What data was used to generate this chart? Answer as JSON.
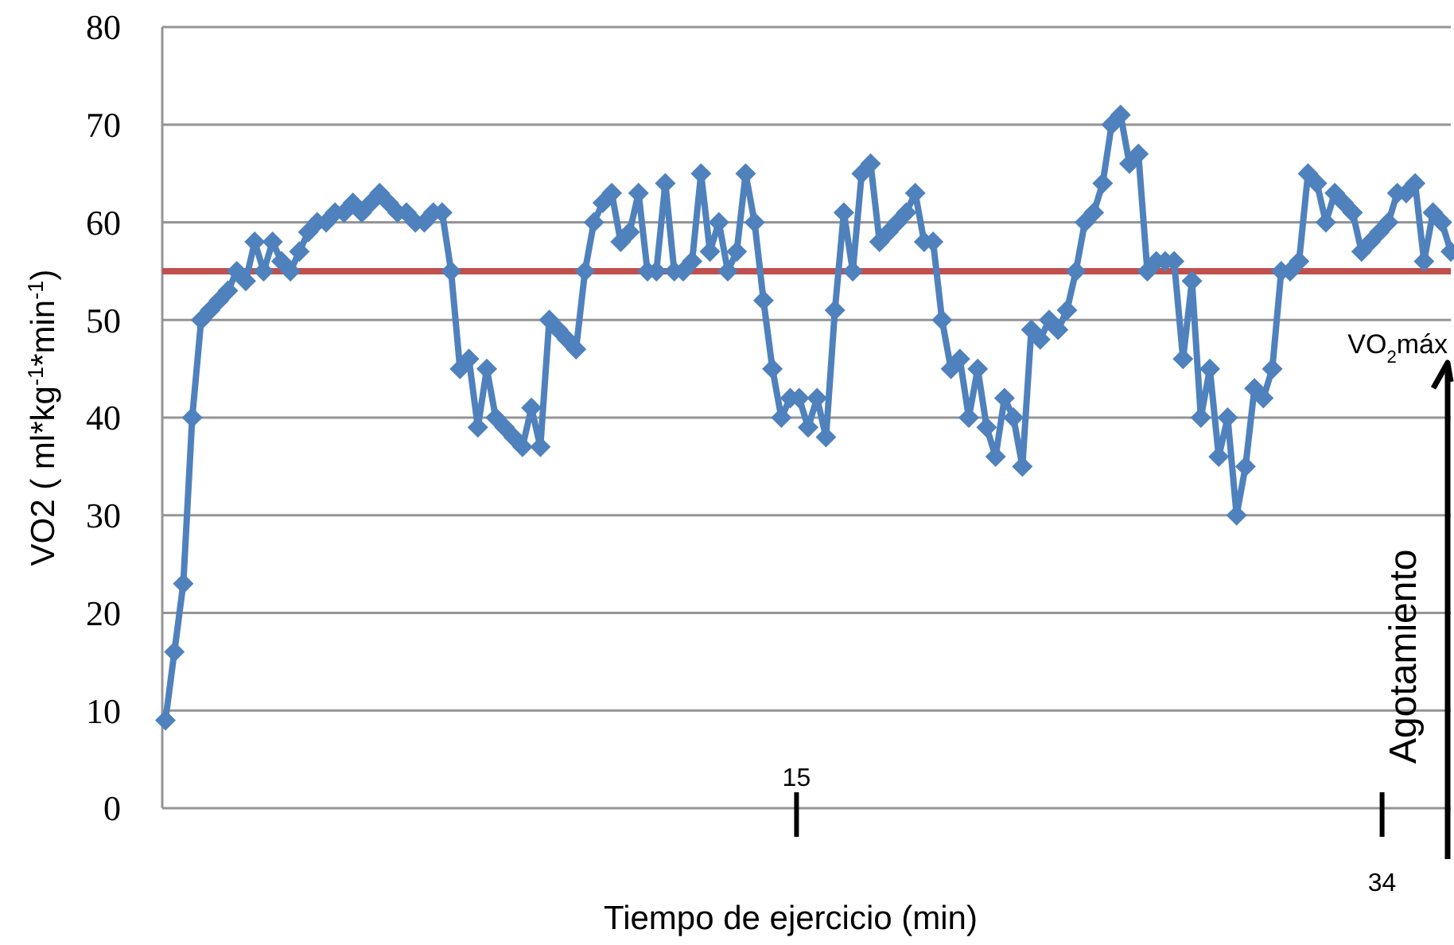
{
  "chart_data": {
    "type": "line",
    "xlabel": "Tiempo de ejercicio (min)",
    "ylabel": "VO2 ( ml*kg$^{-1}$*min$^{-1}$)",
    "categories": [
      null,
      null,
      null,
      null,
      null,
      null,
      null,
      null,
      null,
      null,
      null,
      null,
      null,
      null,
      null,
      null,
      null,
      null,
      null,
      null,
      null,
      null,
      null,
      null,
      null,
      null,
      null,
      null,
      null,
      null,
      null,
      null,
      null,
      null,
      null,
      null,
      null,
      null,
      null,
      null,
      null,
      null,
      null,
      null,
      null,
      null,
      null,
      null,
      null,
      null,
      null,
      null,
      null,
      null,
      null,
      null,
      null,
      null,
      null,
      null,
      null,
      null,
      null,
      null,
      null,
      null,
      null,
      null,
      null,
      null,
      null,
      null,
      null,
      null,
      null,
      null,
      null,
      null,
      null,
      null,
      null,
      null,
      null,
      null,
      null,
      null,
      null,
      null,
      null,
      null,
      null,
      null,
      null,
      null,
      null,
      null,
      null,
      null,
      null,
      null,
      null,
      null,
      null,
      null,
      null,
      null,
      null,
      null,
      null,
      null,
      null,
      null,
      null,
      null,
      null,
      null,
      null,
      null,
      null,
      null,
      null,
      null,
      null,
      null,
      null,
      null,
      null,
      null,
      null,
      null,
      null,
      null,
      null,
      null,
      null,
      null,
      null,
      null,
      null,
      null,
      null,
      null,
      null,
      null,
      null
    ],
    "series": [
      {
        "color": "#4f81bd",
        "values": [
          9,
          16,
          23,
          40,
          50,
          51,
          52,
          53,
          55,
          54,
          58,
          55,
          58,
          56,
          55,
          57,
          59,
          60,
          60,
          61,
          61,
          62,
          61,
          62,
          63,
          62,
          61,
          61,
          60,
          60,
          61,
          61,
          55,
          45,
          46,
          39,
          45,
          40,
          39,
          38,
          37,
          41,
          37,
          50,
          49,
          48,
          47,
          55,
          60,
          62,
          63,
          58,
          59,
          63,
          55,
          55,
          64,
          55,
          55,
          56,
          65,
          57,
          60,
          55,
          57,
          65,
          60,
          52,
          45,
          40,
          42,
          42,
          39,
          42,
          38,
          51,
          61,
          55,
          65,
          66,
          58,
          59,
          60,
          61,
          63,
          58,
          58,
          50,
          45,
          46,
          40,
          45,
          39,
          36,
          42,
          40,
          35,
          49,
          48,
          50,
          49,
          51,
          55,
          60,
          61,
          64,
          70,
          71,
          66,
          67,
          55,
          56,
          56,
          56,
          46,
          54,
          40,
          45,
          36,
          40,
          30,
          35,
          43,
          42,
          45,
          55,
          55,
          56,
          65,
          64,
          60,
          63,
          62,
          61,
          57,
          58,
          59,
          60,
          63,
          63,
          64,
          56,
          61,
          60,
          57
        ]
      }
    ],
    "ylim": [
      0,
      80
    ],
    "yticks": [
      0,
      10,
      20,
      30,
      40,
      50,
      60,
      70,
      80
    ],
    "grid": "y",
    "marker": "diamond",
    "line_style": "solid",
    "ref_lines": [
      {
        "axis": "y",
        "value": 55,
        "color": "#c0504d"
      }
    ],
    "annotations": [
      "15",
      "34",
      "VO$_{2}$máx",
      "Agotamiento"
    ]
  }
}
